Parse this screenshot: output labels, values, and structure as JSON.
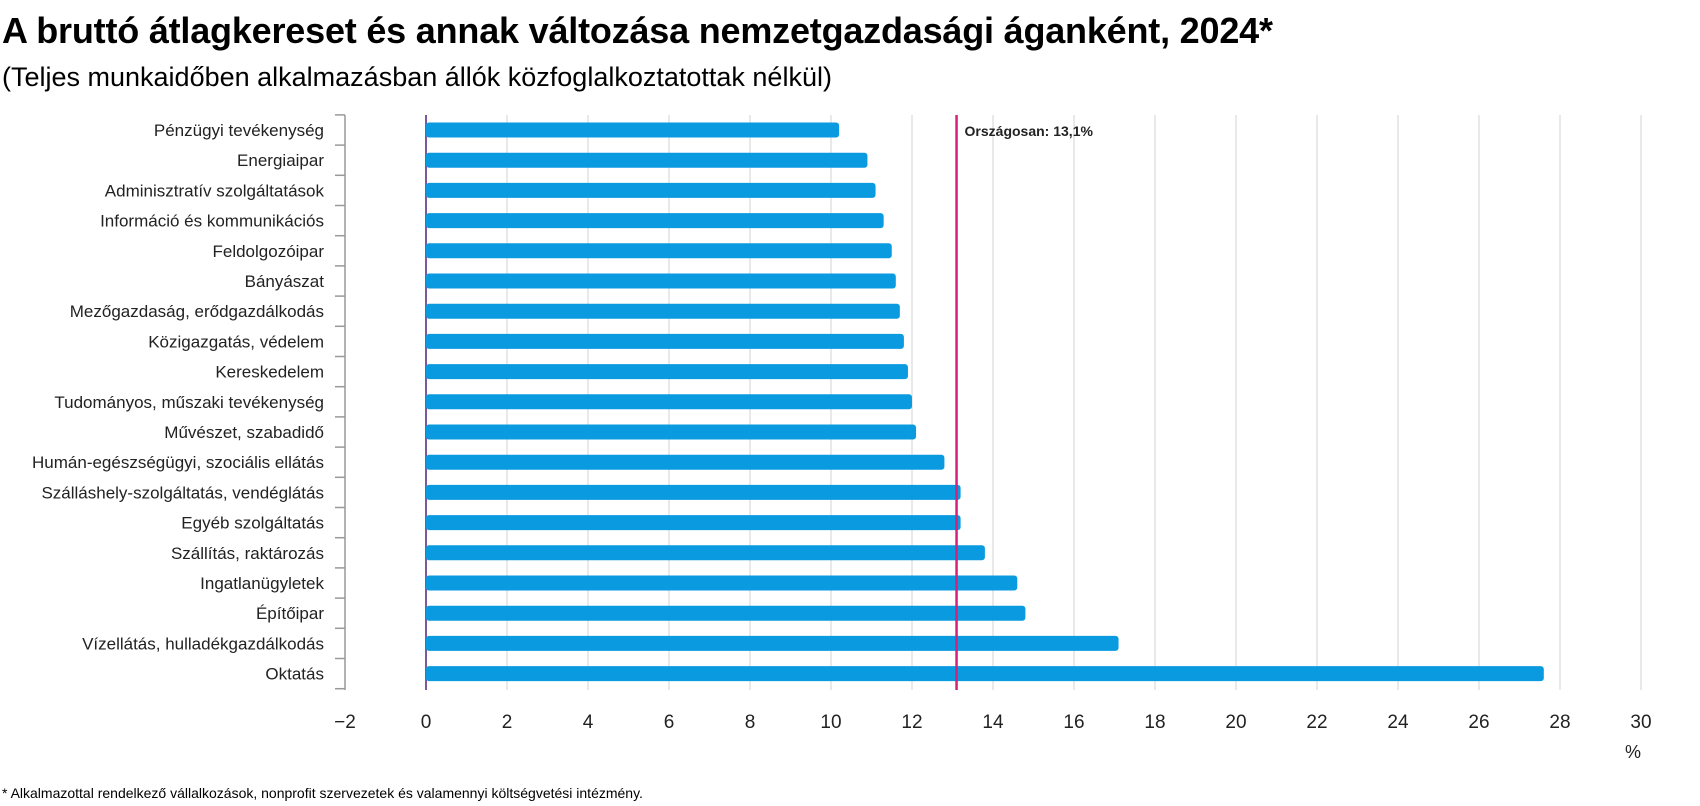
{
  "header": {
    "title": "A bruttó átlagkereset és annak változása nemzetgazdasági áganként, 2024*",
    "subtitle": "(Teljes munkaidőben alkalmazásban állók közfoglalkoztatottak nélkül)"
  },
  "footnote": "* Alkalmazottal rendelkező vállalkozások, nonprofit szervezetek és valamennyi költségvetési intézmény.",
  "chart_data": {
    "type": "bar",
    "orientation": "horizontal",
    "categories": [
      "Pénzügyi tevékenység",
      "Energiaipar",
      "Adminisztratív szolgáltatások",
      "Információ és kommunikációs",
      "Feldolgozóipar",
      "Bányászat",
      "Mezőgazdaság, erődgazdálkodás",
      "Közigazgatás, védelem",
      "Kereskedelem",
      "Tudományos, műszaki tevékenység",
      "Művészet, szabadidő",
      "Humán-egészségügyi, szociális ellátás",
      "Szálláshely-szolgáltatás, vendéglátás",
      "Egyéb szolgáltatás",
      "Szállítás, raktározás",
      "Ingatlanügyletek",
      "Építőipar",
      "Vízellátás, hulladékgazdálkodás",
      "Oktatás"
    ],
    "values": [
      10.2,
      10.9,
      11.1,
      11.3,
      11.5,
      11.6,
      11.7,
      11.8,
      11.9,
      12.0,
      12.1,
      12.8,
      13.2,
      13.2,
      13.8,
      14.6,
      14.8,
      17.1,
      27.6
    ],
    "xlim": [
      -2,
      30
    ],
    "xticks": [
      -2,
      0,
      2,
      4,
      6,
      8,
      10,
      12,
      14,
      16,
      18,
      20,
      22,
      24,
      26,
      28,
      30
    ],
    "xtick_labels": [
      "−2",
      "0",
      "2",
      "4",
      "6",
      "8",
      "10",
      "12",
      "14",
      "16",
      "18",
      "20",
      "22",
      "24",
      "26",
      "28",
      "30"
    ],
    "xlabel": "%",
    "grid": "vertical",
    "reference_line": {
      "value": 13.1,
      "label": "Országosan: 13,1%"
    },
    "colors": {
      "bar": "#0a9ae0",
      "reference": "#d6217a",
      "zero_axis": "#7a5a9a",
      "grid": "#e2e2e2",
      "axis": "#999999"
    }
  }
}
